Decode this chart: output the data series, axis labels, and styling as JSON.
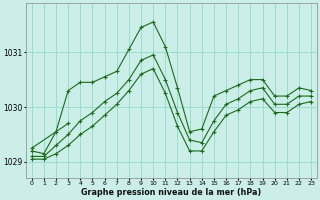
{
  "title": "Graphe pression niveau de la mer (hPa)",
  "bg_color": "#cceee8",
  "grid_color": "#99ddcc",
  "line_color": "#1a6b1a",
  "xlim": [
    -0.5,
    23.5
  ],
  "ylim": [
    1028.7,
    1031.9
  ],
  "yticks": [
    1029,
    1030,
    1031
  ],
  "xticks": [
    0,
    1,
    2,
    3,
    4,
    5,
    6,
    7,
    8,
    9,
    10,
    11,
    12,
    13,
    14,
    15,
    16,
    17,
    18,
    19,
    20,
    21,
    22,
    23
  ],
  "series": [
    [
      1029.25,
      null,
      null,
      1029.7,
      null,
      null,
      null,
      null,
      null,
      null,
      null,
      null,
      null,
      null,
      null,
      null,
      null,
      null,
      null,
      null,
      null,
      null,
      null,
      null
    ],
    [
      1029.2,
      1029.15,
      1029.55,
      1030.3,
      1030.45,
      1030.45,
      1030.55,
      1030.65,
      1031.05,
      1031.45,
      1031.55,
      1031.1,
      1030.35,
      1029.55,
      1029.6,
      1030.2,
      1030.3,
      1030.4,
      1030.5,
      1030.5,
      1030.2,
      1030.2,
      1030.35,
      1030.3
    ],
    [
      1029.1,
      1029.1,
      1029.3,
      1029.5,
      1029.75,
      1029.9,
      1030.1,
      1030.25,
      1030.5,
      1030.85,
      1030.95,
      1030.5,
      1029.9,
      1029.4,
      1029.35,
      1029.75,
      1030.05,
      1030.15,
      1030.3,
      1030.35,
      1030.05,
      1030.05,
      1030.2,
      1030.2
    ],
    [
      1029.05,
      1029.05,
      1029.15,
      1029.3,
      1029.5,
      1029.65,
      1029.85,
      1030.05,
      1030.3,
      1030.6,
      1030.7,
      1030.25,
      1029.65,
      1029.2,
      1029.2,
      1029.55,
      1029.85,
      1029.95,
      1030.1,
      1030.15,
      1029.9,
      1029.9,
      1030.05,
      1030.1
    ]
  ]
}
